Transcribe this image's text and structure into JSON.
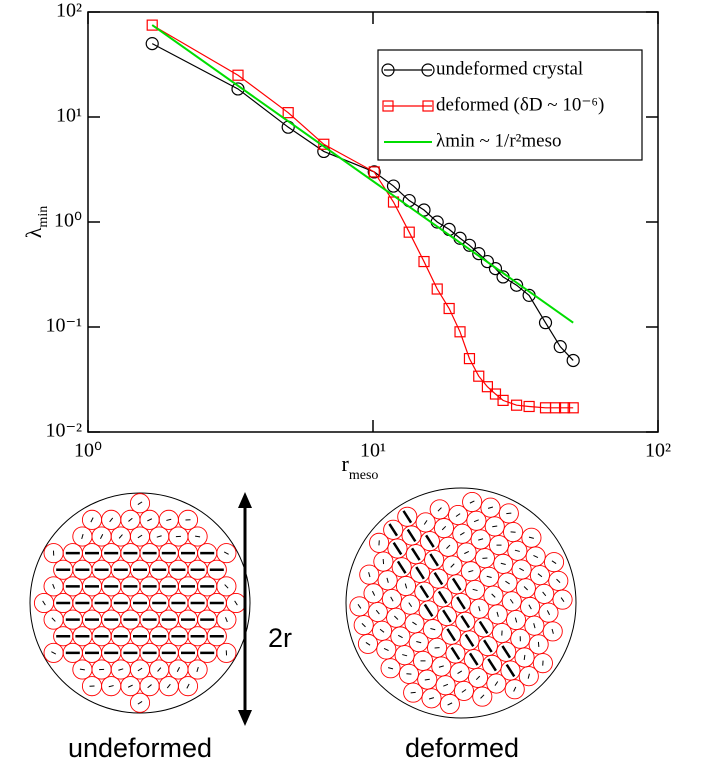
{
  "chart_data": {
    "type": "line",
    "xlabel": {
      "base": "r",
      "sub": "meso"
    },
    "ylabel": {
      "base": "λ",
      "sub": "min"
    },
    "log_x": true,
    "log_y": true,
    "xlim": [
      1,
      100
    ],
    "xticks": [
      {
        "value": 1,
        "label": "10⁰"
      },
      {
        "value": 10,
        "label": "10¹"
      },
      {
        "value": 100,
        "label": "10²"
      }
    ],
    "ylim": [
      0.01,
      100
    ],
    "yticks": [
      {
        "value": 0.01,
        "label": "10⁻²"
      },
      {
        "value": 0.1,
        "label": "10⁻¹"
      },
      {
        "value": 1,
        "label": "10⁰"
      },
      {
        "value": 10,
        "label": "10¹"
      },
      {
        "value": 100,
        "label": "10²"
      }
    ],
    "legend": "upper right",
    "series": [
      {
        "name": "undeformed crystal",
        "color": "#000000",
        "marker": "circle",
        "x": [
          1.68,
          3.36,
          5.04,
          6.72,
          10.1,
          11.8,
          13.4,
          15.1,
          16.8,
          18.5,
          20.2,
          21.8,
          23.5,
          25.2,
          26.9,
          28.6,
          31.9,
          35.3,
          40.3,
          45.4,
          50.4
        ],
        "values": [
          50,
          18.5,
          8,
          4.7,
          3.0,
          2.2,
          1.6,
          1.3,
          1.0,
          0.85,
          0.7,
          0.6,
          0.5,
          0.42,
          0.36,
          0.3,
          0.25,
          0.2,
          0.11,
          0.065,
          0.048
        ]
      },
      {
        "name": "deformed (δD ~ 10⁻⁶)",
        "color": "#ff0000",
        "marker": "square",
        "x": [
          1.68,
          3.36,
          5.04,
          6.72,
          10.1,
          11.8,
          13.4,
          15.1,
          16.8,
          18.5,
          20.2,
          21.8,
          23.5,
          25.2,
          26.9,
          28.6,
          31.9,
          35.3,
          40.3,
          43.7,
          47,
          50.4
        ],
        "values": [
          75,
          25,
          11,
          5.5,
          3.0,
          1.55,
          0.8,
          0.42,
          0.23,
          0.15,
          0.09,
          0.05,
          0.034,
          0.027,
          0.023,
          0.02,
          0.018,
          0.0175,
          0.017,
          0.017,
          0.017,
          0.017
        ]
      },
      {
        "name": "λmin ~ 1/r²meso",
        "color": "#00dd00",
        "marker": "none",
        "x": [
          1.68,
          50.4
        ],
        "values": [
          75,
          0.11
        ]
      }
    ]
  },
  "illustrations": {
    "left": "undeformed",
    "right": "deformed",
    "size": "2r"
  }
}
